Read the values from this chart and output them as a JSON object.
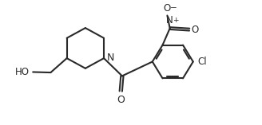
{
  "bg_color": "#ffffff",
  "line_color": "#2a2a2a",
  "line_width": 1.5,
  "font_size": 8.5,
  "figsize": [
    3.28,
    1.57
  ],
  "dpi": 100,
  "xlim": [
    0,
    10
  ],
  "ylim": [
    0,
    5
  ]
}
